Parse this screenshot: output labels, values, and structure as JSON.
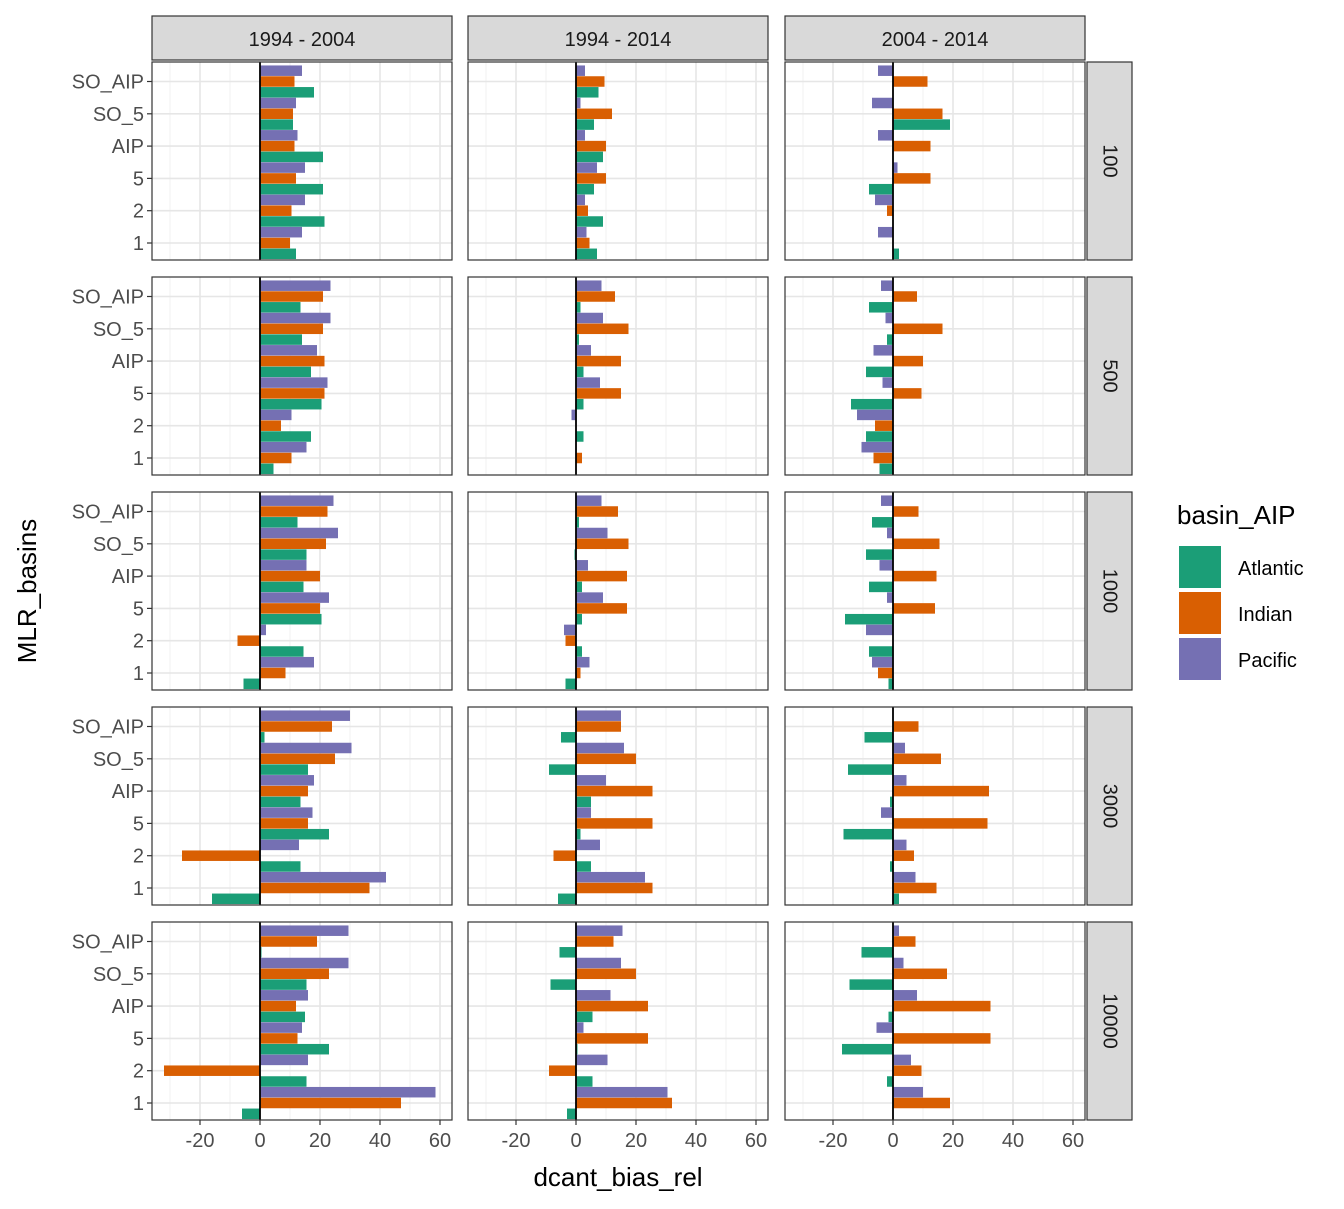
{
  "chart_data": {
    "type": "bar",
    "orientation": "horizontal",
    "xlabel": "dcant_bias_rel",
    "ylabel": "MLR_basins",
    "xlim": [
      -36,
      64
    ],
    "xticks": [
      -20,
      0,
      20,
      40,
      60
    ],
    "categories": [
      "SO_AIP",
      "SO_5",
      "AIP",
      "5",
      "2",
      "1"
    ],
    "columns": [
      "1994 - 2004",
      "1994 - 2014",
      "2004 - 2014"
    ],
    "rows": [
      "100",
      "500",
      "1000",
      "3000",
      "10000"
    ],
    "grid": true,
    "legend": {
      "title": "basin_AIP",
      "position": "right",
      "items": [
        {
          "name": "Atlantic",
          "color": "#1B9E77"
        },
        {
          "name": "Indian",
          "color": "#D95F02"
        },
        {
          "name": "Pacific",
          "color": "#7570B3"
        }
      ]
    },
    "series_order": [
      "Pacific",
      "Indian",
      "Atlantic"
    ],
    "panels": [
      {
        "row": "100",
        "col": "1994 - 2004",
        "values": {
          "Pacific": [
            14,
            12,
            12.5,
            15,
            15,
            14
          ],
          "Indian": [
            11.5,
            11,
            11.5,
            12,
            10.5,
            10
          ],
          "Atlantic": [
            18,
            11,
            21,
            21,
            21.5,
            12
          ]
        }
      },
      {
        "row": "100",
        "col": "1994 - 2014",
        "values": {
          "Pacific": [
            3,
            1.5,
            3,
            7,
            3,
            3.5
          ],
          "Indian": [
            9.5,
            12,
            10,
            10,
            4,
            4.5
          ],
          "Atlantic": [
            7.5,
            6,
            9,
            6,
            9,
            7
          ]
        }
      },
      {
        "row": "100",
        "col": "2004 - 2014",
        "values": {
          "Pacific": [
            -5,
            -7,
            -5,
            1.5,
            -6,
            -5
          ],
          "Indian": [
            11.5,
            16.5,
            12.5,
            12.5,
            -2,
            0
          ],
          "Atlantic": [
            0,
            19,
            0,
            -8,
            0,
            2
          ]
        }
      },
      {
        "row": "500",
        "col": "1994 - 2004",
        "values": {
          "Pacific": [
            23.5,
            23.5,
            19,
            22.5,
            10.5,
            15.5
          ],
          "Indian": [
            21,
            21,
            21.5,
            21.5,
            7,
            10.5
          ],
          "Atlantic": [
            13.5,
            14,
            17,
            20.5,
            17,
            4.5
          ]
        }
      },
      {
        "row": "500",
        "col": "1994 - 2014",
        "values": {
          "Pacific": [
            8.5,
            9,
            5,
            8,
            -1.5,
            0
          ],
          "Indian": [
            13,
            17.5,
            15,
            15,
            0,
            2
          ],
          "Atlantic": [
            1.5,
            1,
            2.5,
            2.5,
            2.5,
            0
          ]
        }
      },
      {
        "row": "500",
        "col": "2004 - 2014",
        "values": {
          "Pacific": [
            -4,
            -2.5,
            -6.5,
            -3.5,
            -12,
            -10.5
          ],
          "Indian": [
            8,
            16.5,
            10,
            9.5,
            -6,
            -6.5
          ],
          "Atlantic": [
            -8,
            -2,
            -9,
            -14,
            -9,
            -4.5
          ]
        }
      },
      {
        "row": "1000",
        "col": "1994 - 2004",
        "values": {
          "Pacific": [
            24.5,
            26,
            15.5,
            23,
            2,
            18
          ],
          "Indian": [
            22.5,
            22,
            20,
            20,
            -7.5,
            8.5
          ],
          "Atlantic": [
            12.5,
            15.5,
            14.5,
            20.5,
            14.5,
            -5.5
          ]
        }
      },
      {
        "row": "1000",
        "col": "1994 - 2014",
        "values": {
          "Pacific": [
            8.5,
            10.5,
            4,
            9,
            -4,
            4.5
          ],
          "Indian": [
            14,
            17.5,
            17,
            17,
            -3.5,
            1.5
          ],
          "Atlantic": [
            1,
            -0.5,
            2,
            2,
            2,
            -3.5
          ]
        }
      },
      {
        "row": "1000",
        "col": "2004 - 2014",
        "values": {
          "Pacific": [
            -4,
            -2,
            -4.5,
            -2,
            -9,
            -7
          ],
          "Indian": [
            8.5,
            15.5,
            14.5,
            14,
            0,
            -5
          ],
          "Atlantic": [
            -7,
            -9,
            -8,
            -16,
            -8,
            -1.5
          ]
        }
      },
      {
        "row": "3000",
        "col": "1994 - 2004",
        "values": {
          "Pacific": [
            30,
            30.5,
            18,
            17.5,
            13,
            42
          ],
          "Indian": [
            24,
            25,
            16,
            16,
            -26,
            36.5
          ],
          "Atlantic": [
            1.5,
            16,
            13.5,
            23,
            13.5,
            -16
          ]
        }
      },
      {
        "row": "3000",
        "col": "1994 - 2014",
        "values": {
          "Pacific": [
            15,
            16,
            10,
            5,
            8,
            23
          ],
          "Indian": [
            15,
            20,
            25.5,
            25.5,
            -7.5,
            25.5
          ],
          "Atlantic": [
            -5,
            -9,
            5,
            1.5,
            5,
            -6
          ]
        }
      },
      {
        "row": "3000",
        "col": "2004 - 2014",
        "values": {
          "Pacific": [
            0,
            4,
            4.5,
            -4,
            4.5,
            7.5
          ],
          "Indian": [
            8.5,
            16,
            32,
            31.5,
            7,
            14.5
          ],
          "Atlantic": [
            -9.5,
            -15,
            -1,
            -16.5,
            -1,
            2
          ]
        }
      },
      {
        "row": "10000",
        "col": "1994 - 2004",
        "values": {
          "Pacific": [
            29.5,
            29.5,
            16,
            14,
            16,
            58.5
          ],
          "Indian": [
            19,
            23,
            12,
            12.5,
            -32,
            47
          ],
          "Atlantic": [
            0.5,
            15.5,
            15,
            23,
            15.5,
            -6
          ]
        }
      },
      {
        "row": "10000",
        "col": "1994 - 2014",
        "values": {
          "Pacific": [
            15.5,
            15,
            11.5,
            2.5,
            10.5,
            30.5
          ],
          "Indian": [
            12.5,
            20,
            24,
            24,
            -9,
            32
          ],
          "Atlantic": [
            -5.5,
            -8.5,
            5.5,
            0.5,
            5.5,
            -3
          ]
        }
      },
      {
        "row": "10000",
        "col": "2004 - 2014",
        "values": {
          "Pacific": [
            2,
            3.5,
            8,
            -5.5,
            6,
            10
          ],
          "Indian": [
            7.5,
            18,
            32.5,
            32.5,
            9.5,
            19
          ],
          "Atlantic": [
            -10.5,
            -14.5,
            -1.5,
            -17,
            -2,
            0
          ]
        }
      }
    ]
  }
}
